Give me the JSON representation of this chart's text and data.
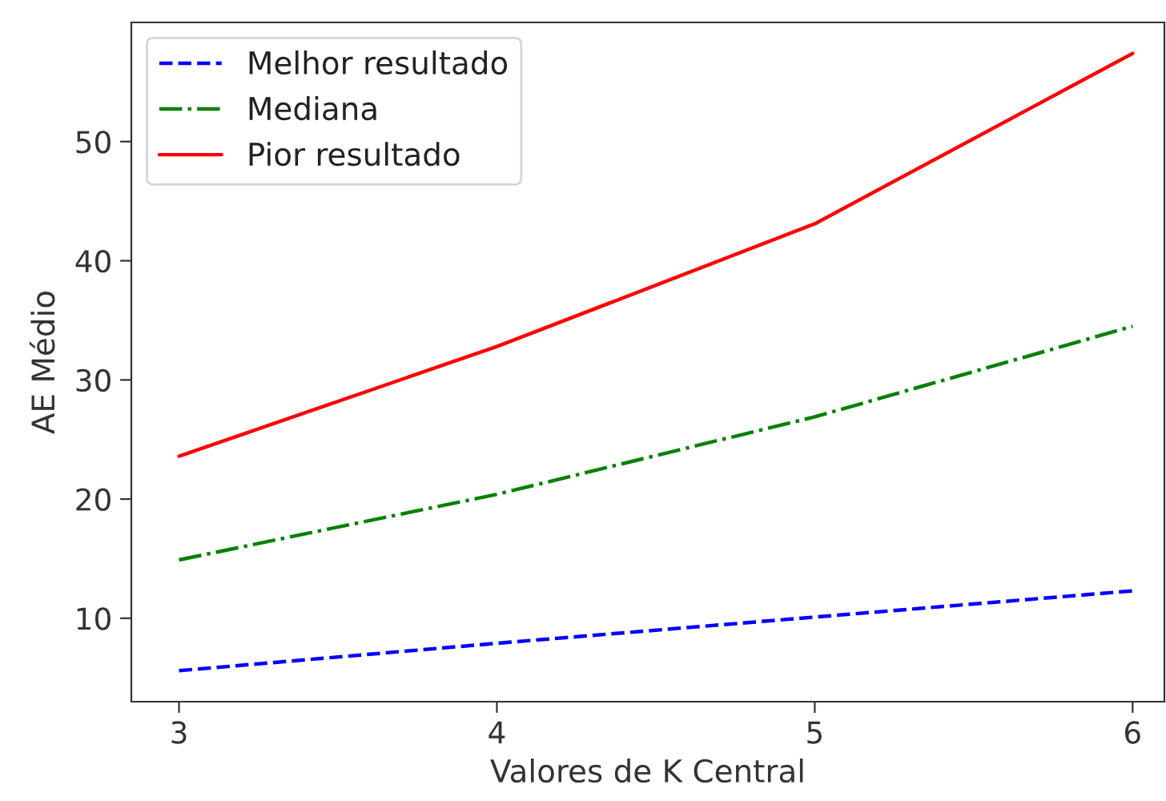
{
  "chart_data": {
    "type": "line",
    "xlabel": "Valores de K Central",
    "ylabel": "AE Médio",
    "x": [
      3,
      4,
      5,
      6
    ],
    "series": [
      {
        "name": "Melhor resultado",
        "color": "#0000ff",
        "line_style": "dashed",
        "values": [
          5.6,
          7.9,
          10.1,
          12.3
        ]
      },
      {
        "name": "Mediana",
        "color": "#008000",
        "line_style": "dashdot",
        "values": [
          14.9,
          20.4,
          26.9,
          34.5
        ]
      },
      {
        "name": "Pior resultado",
        "color": "#ff0000",
        "line_style": "solid",
        "values": [
          23.6,
          32.8,
          43.1,
          57.4
        ]
      }
    ],
    "xlim": [
      2.85,
      6.1
    ],
    "xticks": [
      3,
      4,
      5,
      6
    ],
    "ylim": [
      3.0,
      60.0
    ],
    "yticks": [
      10,
      20,
      30,
      40,
      50
    ],
    "grid": false,
    "legend": "top left",
    "marker": "none"
  }
}
